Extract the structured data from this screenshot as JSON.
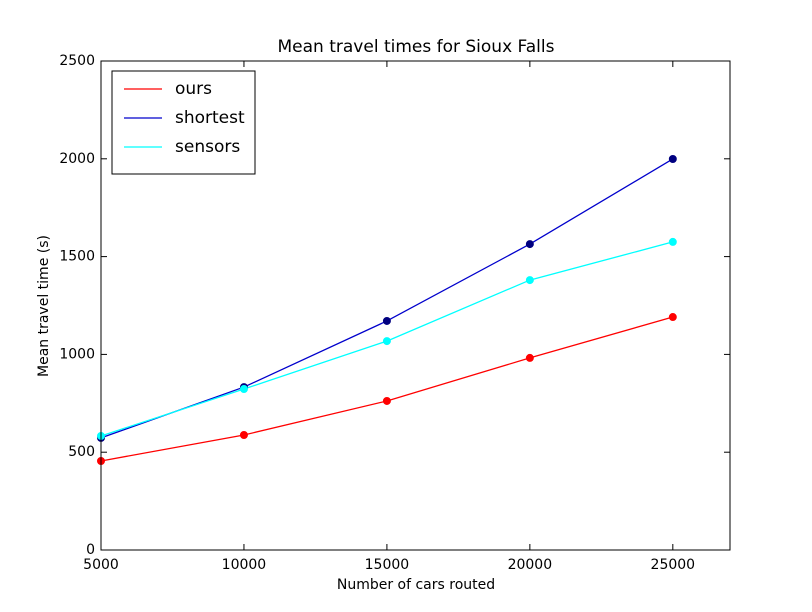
{
  "chart_data": {
    "type": "line",
    "title": "Mean travel times for Sioux Falls",
    "xlabel": "Number of cars routed",
    "ylabel": "Mean travel time (s)",
    "x": [
      5000,
      10000,
      15000,
      20000,
      25000
    ],
    "series": [
      {
        "name": "ours",
        "color": "#ff0000",
        "marker_color": "#ff0000",
        "values": [
          455,
          588,
          762,
          982,
          1191
        ]
      },
      {
        "name": "shortest",
        "color": "#0000cc",
        "marker_color": "#000080",
        "values": [
          573,
          833,
          1171,
          1564,
          1999
        ]
      },
      {
        "name": "sensors",
        "color": "#00ffff",
        "marker_color": "#00ffff",
        "values": [
          583,
          823,
          1068,
          1380,
          1575
        ]
      }
    ],
    "xlim": [
      5000,
      27000
    ],
    "ylim": [
      0,
      2500
    ],
    "xticks": [
      5000,
      10000,
      15000,
      20000,
      25000
    ],
    "yticks": [
      0,
      500,
      1000,
      1500,
      2000,
      2500
    ],
    "legend": "upper left",
    "grid": false
  }
}
